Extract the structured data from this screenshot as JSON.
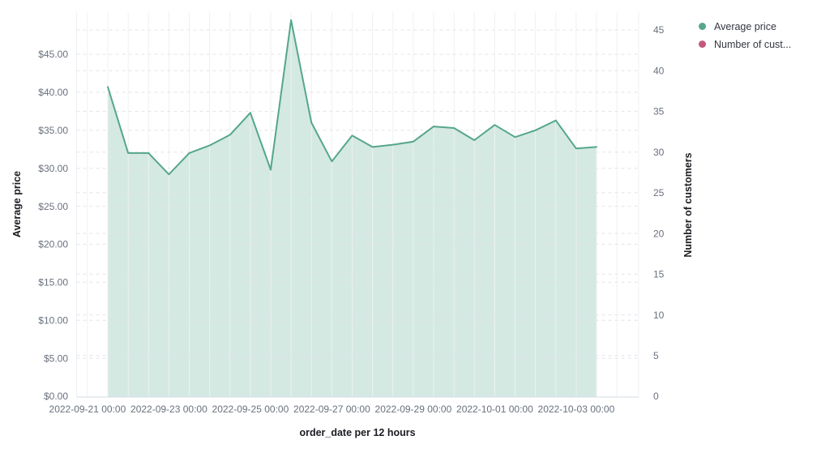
{
  "chart": {
    "x_axis_title": "order_date per 12 hours",
    "left_axis_title": "Average price",
    "right_axis_title": "Number of customers"
  },
  "legend": {
    "items": [
      {
        "label": "Average price",
        "color": "#55A68C"
      },
      {
        "label": "Number of cust...",
        "color": "#C4587D"
      }
    ]
  },
  "chart_data": {
    "type": "area",
    "title": "",
    "xlabel": "order_date per 12 hours",
    "x_interval": "12 hours",
    "grid": true,
    "legend_position": "top-right",
    "x": [
      "2022-09-21 12:00",
      "2022-09-22 00:00",
      "2022-09-22 12:00",
      "2022-09-23 00:00",
      "2022-09-23 12:00",
      "2022-09-24 00:00",
      "2022-09-24 12:00",
      "2022-09-25 00:00",
      "2022-09-25 12:00",
      "2022-09-26 00:00",
      "2022-09-26 12:00",
      "2022-09-27 00:00",
      "2022-09-27 12:00",
      "2022-09-28 00:00",
      "2022-09-28 12:00",
      "2022-09-29 00:00",
      "2022-09-29 12:00",
      "2022-09-30 00:00",
      "2022-09-30 12:00",
      "2022-10-01 00:00",
      "2022-10-01 12:00",
      "2022-10-02 00:00",
      "2022-10-02 12:00",
      "2022-10-03 00:00",
      "2022-10-03 12:00"
    ],
    "x_axis_tick_labels": [
      "2022-09-21 00:00",
      "2022-09-23 00:00",
      "2022-09-25 00:00",
      "2022-09-27 00:00",
      "2022-09-29 00:00",
      "2022-10-01 00:00",
      "2022-10-03 00:00"
    ],
    "left_axis": {
      "label": "Average price",
      "tick_values": [
        0,
        5,
        10,
        15,
        20,
        25,
        30,
        35,
        40,
        45
      ],
      "tick_labels": [
        "$0.00",
        "$5.00",
        "$10.00",
        "$15.00",
        "$20.00",
        "$25.00",
        "$30.00",
        "$35.00",
        "$40.00",
        "$45.00"
      ],
      "ylim": [
        0,
        50.5
      ]
    },
    "right_axis": {
      "label": "Number of customers",
      "tick_values": [
        0,
        5,
        10,
        15,
        20,
        25,
        30,
        35,
        40,
        45
      ],
      "tick_labels": [
        "0",
        "5",
        "10",
        "15",
        "20",
        "25",
        "30",
        "35",
        "40",
        "45"
      ],
      "ylim": [
        0,
        47.5
      ]
    },
    "series": [
      {
        "name": "Average price",
        "axis": "left",
        "color": "#55A68C",
        "fill_opacity": 0.25,
        "values": [
          40.7,
          32.0,
          32.0,
          29.2,
          32.0,
          33.0,
          34.4,
          37.3,
          29.8,
          49.5,
          36.0,
          30.9,
          34.3,
          32.8,
          33.1,
          33.5,
          35.5,
          35.3,
          33.7,
          35.7,
          34.1,
          35.0,
          36.3,
          32.6,
          32.8
        ]
      },
      {
        "name": "Number of customers",
        "axis": "right",
        "color": "#C4587D",
        "visible_in_plot": false,
        "values": []
      }
    ]
  }
}
